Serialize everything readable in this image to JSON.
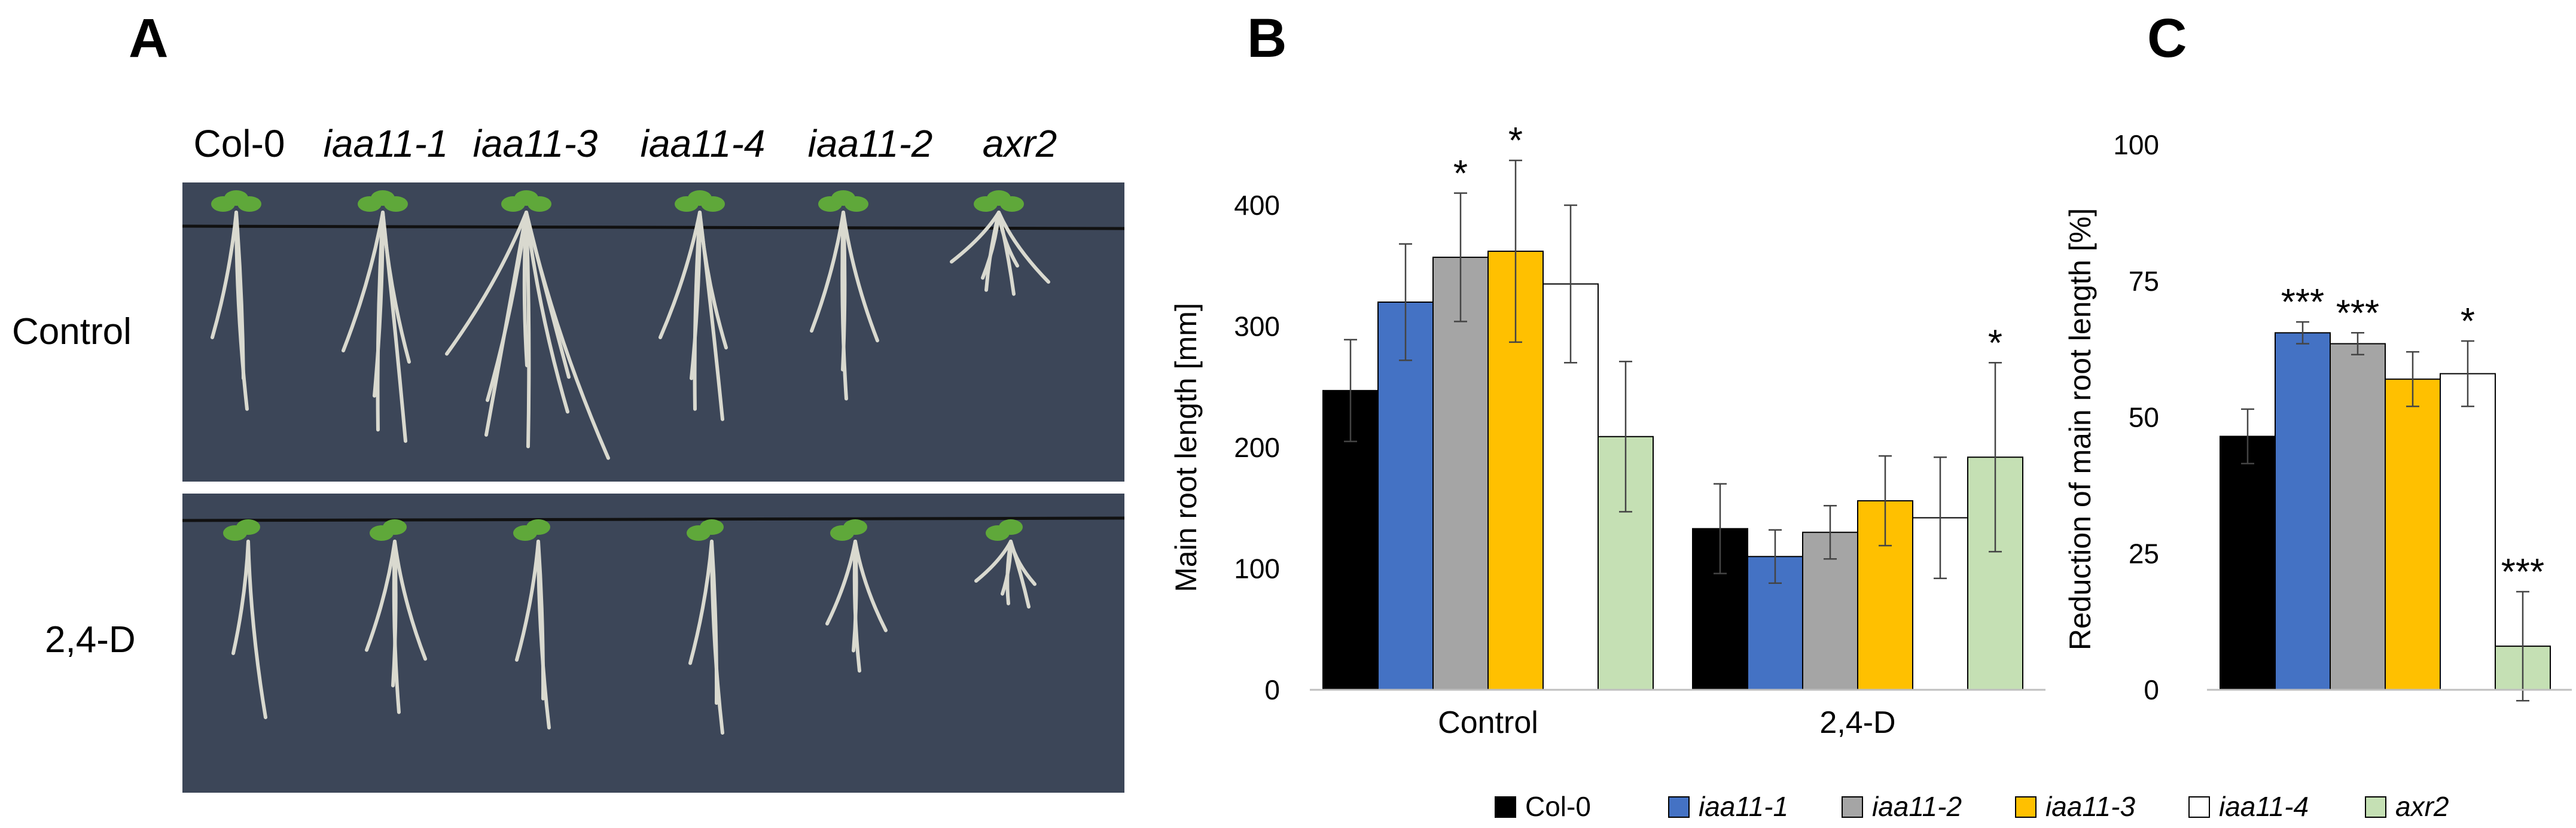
{
  "panels": {
    "a": "A",
    "b": "B",
    "c": "C"
  },
  "photo": {
    "genotypes": [
      {
        "label": "Col-0",
        "italic": false
      },
      {
        "label": "iaa11-1",
        "italic": true
      },
      {
        "label": "iaa11-3",
        "italic": true
      },
      {
        "label": "iaa11-4",
        "italic": true
      },
      {
        "label": "iaa11-2",
        "italic": true
      },
      {
        "label": "axr2",
        "italic": true
      }
    ],
    "rows": [
      "Control",
      "2,4-D"
    ],
    "colors": {
      "background": "#3c4658",
      "root": "#d9d9cf",
      "leaf": "#5fa83a"
    }
  },
  "legend": [
    {
      "label": "Col-0",
      "italic": false,
      "color": "#000000"
    },
    {
      "label": "iaa11-1",
      "italic": true,
      "color": "#4472c4"
    },
    {
      "label": "iaa11-2",
      "italic": true,
      "color": "#a5a5a5"
    },
    {
      "label": "iaa11-3",
      "italic": true,
      "color": "#ffc000"
    },
    {
      "label": "iaa11-4",
      "italic": true,
      "color": "#ffffff"
    },
    {
      "label": "axr2",
      "italic": true,
      "color": "#c5e0b4"
    }
  ],
  "chart_data": [
    {
      "panel": "B",
      "type": "bar",
      "title": "",
      "xlabel": "",
      "ylabel": "Main root length [mm]",
      "ylim": [
        0,
        400
      ],
      "yticks": [
        0,
        100,
        200,
        300,
        400
      ],
      "grid": false,
      "legend_position": "bottom",
      "categories": [
        "Control",
        "2,4-D"
      ],
      "series": [
        {
          "name": "Col-0",
          "values": [
            247,
            133
          ],
          "errors": [
            42,
            37
          ],
          "significance": [
            "",
            ""
          ]
        },
        {
          "name": "iaa11-1",
          "values": [
            320,
            110
          ],
          "errors": [
            48,
            22
          ],
          "significance": [
            "",
            ""
          ]
        },
        {
          "name": "iaa11-2",
          "values": [
            357,
            130
          ],
          "errors": [
            53,
            22
          ],
          "significance": [
            "*",
            ""
          ]
        },
        {
          "name": "iaa11-3",
          "values": [
            362,
            156
          ],
          "errors": [
            75,
            37
          ],
          "significance": [
            "*",
            ""
          ]
        },
        {
          "name": "iaa11-4",
          "values": [
            335,
            142
          ],
          "errors": [
            65,
            50
          ],
          "significance": [
            "",
            ""
          ]
        },
        {
          "name": "axr2",
          "values": [
            209,
            192
          ],
          "errors": [
            62,
            78
          ],
          "significance": [
            "",
            "*"
          ]
        }
      ]
    },
    {
      "panel": "C",
      "type": "bar",
      "title": "",
      "xlabel": "",
      "ylabel": "Reduction of main root length [%]",
      "ylim": [
        0,
        100
      ],
      "yticks": [
        0,
        25,
        50,
        75,
        100
      ],
      "grid": false,
      "categories": [
        "Col-0",
        "iaa11-1",
        "iaa11-2",
        "iaa11-3",
        "iaa11-4",
        "axr2"
      ],
      "values": [
        46.5,
        65.5,
        63.5,
        57,
        58,
        8
      ],
      "errors": [
        5,
        2,
        2,
        5,
        6,
        10
      ],
      "significance": [
        "",
        "***",
        "***",
        "",
        "*",
        "***"
      ]
    }
  ]
}
